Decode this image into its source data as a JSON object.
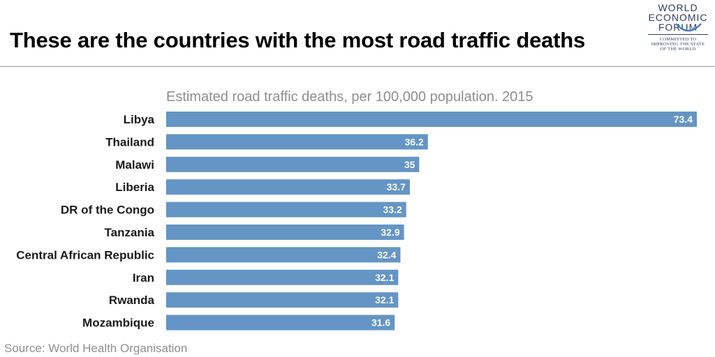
{
  "header": {
    "title": "These are the countries with the most road traffic deaths"
  },
  "logo": {
    "line1": "WORLD",
    "line2": "ECONOMIC",
    "line3": "FORUM",
    "tagline1": "COMMITTED TO",
    "tagline2": "IMPROVING THE STATE",
    "tagline3": "OF THE WORLD"
  },
  "footer": {
    "source": "Source: World Health Organisation"
  },
  "colors": {
    "bar": "#6495c5",
    "title": "#000000",
    "muted": "#8f8f8f"
  },
  "chart_data": {
    "type": "bar",
    "orientation": "horizontal",
    "title": "Estimated road traffic deaths, per 100,000 population. 2015",
    "categories": [
      "Libya",
      "Thailand",
      "Malawi",
      "Liberia",
      "DR of the Congo",
      "Tanzania",
      "Central African Republic",
      "Iran",
      "Rwanda",
      "Mozambique"
    ],
    "values": [
      73.4,
      36.2,
      35,
      33.7,
      33.2,
      32.9,
      32.4,
      32.1,
      32.1,
      31.6
    ],
    "value_labels": [
      "73.4",
      "36.2",
      "35",
      "33.7",
      "33.2",
      "32.9",
      "32.4",
      "32.1",
      "32.1",
      "31.6"
    ],
    "xlabel": "",
    "ylabel": "",
    "xlim": [
      0,
      73.4
    ],
    "grid": false,
    "legend": "none"
  }
}
